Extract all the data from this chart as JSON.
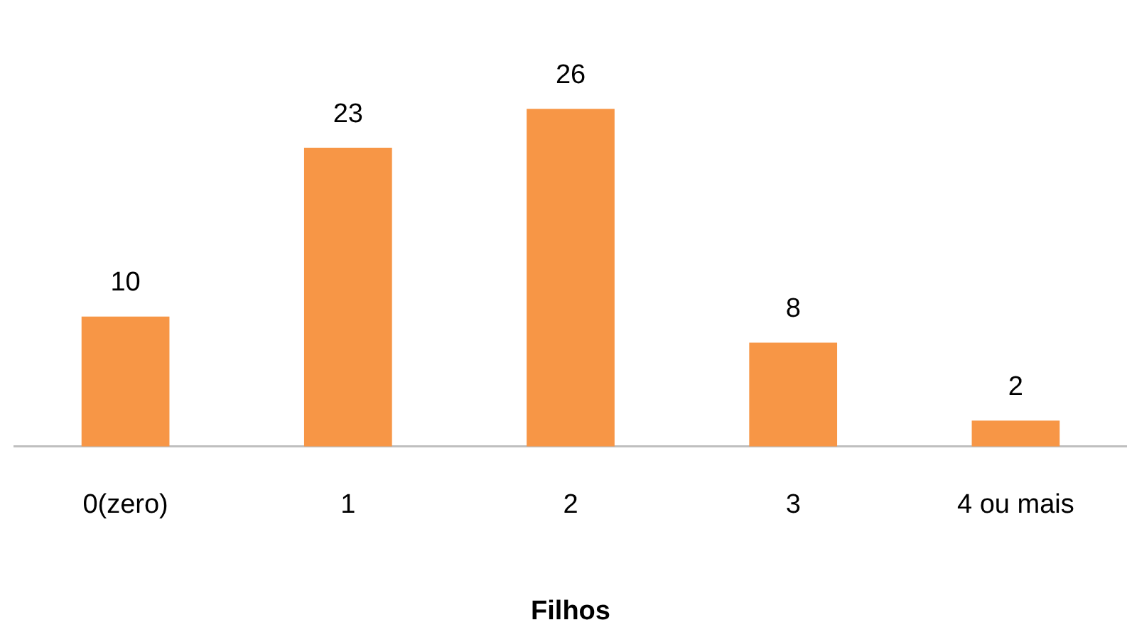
{
  "chart_data": {
    "type": "bar",
    "xlabel": "Filhos",
    "categories": [
      "0(zero)",
      "1",
      "2",
      "3",
      "4 ou mais"
    ],
    "values": [
      10,
      23,
      26,
      8,
      2
    ],
    "color": "#f79646",
    "data_labels": true,
    "grid": false,
    "legend": false
  }
}
